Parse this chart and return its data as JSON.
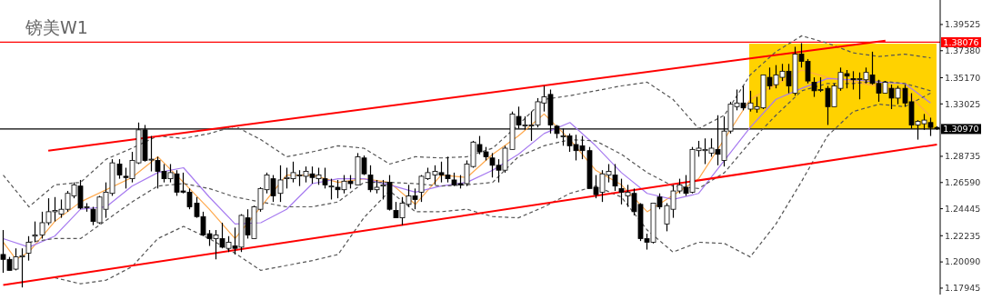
{
  "chart_data": {
    "type": "candlestick",
    "title": "镑美W1",
    "color": "#000000",
    "tick_labels": "y",
    "marker": "none",
    "ylim": [
      1.1742,
      1.4153
    ],
    "yticks": [
      1.39525,
      {
        "value": 1.3738,
        "label": "1.37380"
      },
      {
        "value": 1.3517,
        "label": "1.35170"
      },
      1.33025,
      1.28735,
      {
        "value": 1.2659,
        "label": "1.26590"
      },
      1.24445,
      1.22235,
      {
        "value": 1.2009,
        "label": "1.20090"
      },
      1.17945
    ],
    "categories": [
      null,
      null,
      null,
      null,
      null,
      null,
      null,
      null,
      null,
      null,
      null,
      null,
      null,
      null,
      null,
      null,
      null,
      null,
      null,
      null,
      null,
      null,
      null,
      null,
      null,
      null,
      null,
      null,
      null,
      null,
      null,
      null,
      null,
      null,
      null,
      null,
      null,
      null,
      null,
      null,
      null,
      null,
      null,
      null,
      null,
      null,
      null,
      null,
      null,
      null,
      null,
      null,
      null,
      null,
      null,
      null,
      null,
      null,
      null,
      null,
      null,
      null,
      null,
      null,
      null,
      null,
      null,
      null,
      null,
      null,
      null,
      null,
      null,
      null,
      null,
      null,
      null,
      null,
      null,
      null,
      null,
      null,
      null,
      null,
      null,
      null,
      null,
      null,
      null,
      null,
      null,
      null,
      null,
      null,
      null,
      null,
      null,
      null,
      null,
      null,
      null,
      null,
      null,
      null,
      null,
      null,
      null,
      null,
      null,
      null,
      null,
      null,
      null,
      null,
      null,
      null,
      null,
      null,
      null,
      null,
      null,
      null,
      null,
      null,
      null,
      null,
      null,
      null,
      null,
      null,
      null,
      null,
      null,
      null,
      null,
      null,
      null,
      null,
      null,
      null,
      null,
      null,
      null,
      null,
      null,
      null
    ],
    "ohlc": [
      [
        1.207,
        1.227,
        1.192,
        1.203
      ],
      [
        1.203,
        1.205,
        1.194,
        1.194
      ],
      [
        1.195,
        1.212,
        1.194,
        1.205
      ],
      [
        1.205,
        1.212,
        1.18,
        1.206
      ],
      [
        1.208,
        1.222,
        1.202,
        1.217
      ],
      [
        1.222,
        1.234,
        1.217,
        1.223
      ],
      [
        1.223,
        1.242,
        1.22,
        1.233
      ],
      [
        1.233,
        1.253,
        1.231,
        1.242
      ],
      [
        1.242,
        1.254,
        1.234,
        1.243
      ],
      [
        1.24,
        1.252,
        1.237,
        1.244
      ],
      [
        1.244,
        1.259,
        1.242,
        1.257
      ],
      [
        1.255,
        1.266,
        1.253,
        1.264
      ],
      [
        1.263,
        1.268,
        1.244,
        1.245
      ],
      [
        1.246,
        1.249,
        1.242,
        1.246
      ],
      [
        1.244,
        1.246,
        1.231,
        1.234
      ],
      [
        1.233,
        1.255,
        1.232,
        1.254
      ],
      [
        1.244,
        1.266,
        1.237,
        1.258
      ],
      [
        1.257,
        1.285,
        1.255,
        1.282
      ],
      [
        1.281,
        1.285,
        1.269,
        1.272
      ],
      [
        1.271,
        1.278,
        1.261,
        1.27
      ],
      [
        1.269,
        1.291,
        1.266,
        1.284
      ],
      [
        1.282,
        1.315,
        1.281,
        1.309
      ],
      [
        1.309,
        1.313,
        1.283,
        1.284
      ],
      [
        1.285,
        1.304,
        1.275,
        1.285
      ],
      [
        1.284,
        1.287,
        1.261,
        1.275
      ],
      [
        1.275,
        1.281,
        1.266,
        1.269
      ],
      [
        1.269,
        1.281,
        1.266,
        1.274
      ],
      [
        1.273,
        1.276,
        1.255,
        1.258
      ],
      [
        1.259,
        1.274,
        1.257,
        1.258
      ],
      [
        1.258,
        1.261,
        1.244,
        1.246
      ],
      [
        1.249,
        1.254,
        1.237,
        1.238
      ],
      [
        1.238,
        1.242,
        1.222,
        1.223
      ],
      [
        1.224,
        1.227,
        1.214,
        1.22
      ],
      [
        1.22,
        1.227,
        1.203,
        1.223
      ],
      [
        1.22,
        1.233,
        1.212,
        1.213
      ],
      [
        1.212,
        1.222,
        1.209,
        1.217
      ],
      [
        1.214,
        1.229,
        1.207,
        1.212
      ],
      [
        1.213,
        1.24,
        1.209,
        1.239
      ],
      [
        1.237,
        1.244,
        1.22,
        1.223
      ],
      [
        1.22,
        1.247,
        1.22,
        1.246
      ],
      [
        1.244,
        1.262,
        1.242,
        1.261
      ],
      [
        1.26,
        1.274,
        1.257,
        1.272
      ],
      [
        1.269,
        1.272,
        1.25,
        1.255
      ],
      [
        1.257,
        1.28,
        1.25,
        1.268
      ],
      [
        1.269,
        1.278,
        1.261,
        1.27
      ],
      [
        1.269,
        1.283,
        1.266,
        1.274
      ],
      [
        1.272,
        1.276,
        1.263,
        1.272
      ],
      [
        1.271,
        1.279,
        1.266,
        1.275
      ],
      [
        1.273,
        1.279,
        1.265,
        1.27
      ],
      [
        1.269,
        1.278,
        1.264,
        1.272
      ],
      [
        1.269,
        1.278,
        1.261,
        1.264
      ],
      [
        1.263,
        1.269,
        1.252,
        1.263
      ],
      [
        1.262,
        1.268,
        1.253,
        1.26
      ],
      [
        1.26,
        1.272,
        1.257,
        1.267
      ],
      [
        1.267,
        1.272,
        1.261,
        1.265
      ],
      [
        1.264,
        1.29,
        1.264,
        1.287
      ],
      [
        1.286,
        1.288,
        1.272,
        1.273
      ],
      [
        1.272,
        1.28,
        1.258,
        1.26
      ],
      [
        1.26,
        1.268,
        1.257,
        1.262
      ],
      [
        1.263,
        1.268,
        1.252,
        1.264
      ],
      [
        1.266,
        1.272,
        1.243,
        1.244
      ],
      [
        1.243,
        1.25,
        1.237,
        1.237
      ],
      [
        1.237,
        1.254,
        1.231,
        1.249
      ],
      [
        1.248,
        1.264,
        1.246,
        1.255
      ],
      [
        1.255,
        1.261,
        1.244,
        1.252
      ],
      [
        1.258,
        1.272,
        1.25,
        1.271
      ],
      [
        1.269,
        1.278,
        1.268,
        1.274
      ],
      [
        1.272,
        1.28,
        1.264,
        1.275
      ],
      [
        1.274,
        1.283,
        1.266,
        1.272
      ],
      [
        1.272,
        1.287,
        1.266,
        1.269
      ],
      [
        1.268,
        1.274,
        1.263,
        1.264
      ],
      [
        1.265,
        1.272,
        1.261,
        1.264
      ],
      [
        1.265,
        1.284,
        1.263,
        1.281
      ],
      [
        1.279,
        1.3,
        1.278,
        1.299
      ],
      [
        1.297,
        1.304,
        1.289,
        1.291
      ],
      [
        1.291,
        1.295,
        1.284,
        1.287
      ],
      [
        1.286,
        1.29,
        1.27,
        1.28
      ],
      [
        1.28,
        1.285,
        1.266,
        1.276
      ],
      [
        1.276,
        1.296,
        1.274,
        1.294
      ],
      [
        1.293,
        1.324,
        1.293,
        1.322
      ],
      [
        1.32,
        1.328,
        1.31,
        1.313
      ],
      [
        1.313,
        1.32,
        1.309,
        1.313
      ],
      [
        1.313,
        1.324,
        1.3,
        1.313
      ],
      [
        1.313,
        1.335,
        1.311,
        1.332
      ],
      [
        1.331,
        1.345,
        1.324,
        1.336
      ],
      [
        1.338,
        1.342,
        1.306,
        1.313
      ],
      [
        1.312,
        1.313,
        1.302,
        1.306
      ],
      [
        1.304,
        1.31,
        1.296,
        1.304
      ],
      [
        1.304,
        1.306,
        1.291,
        1.296
      ],
      [
        1.297,
        1.305,
        1.284,
        1.292
      ],
      [
        1.296,
        1.304,
        1.285,
        1.292
      ],
      [
        1.292,
        1.295,
        1.261,
        1.261
      ],
      [
        1.262,
        1.272,
        1.253,
        1.256
      ],
      [
        1.258,
        1.276,
        1.25,
        1.273
      ],
      [
        1.272,
        1.281,
        1.266,
        1.275
      ],
      [
        1.272,
        1.281,
        1.259,
        1.263
      ],
      [
        1.261,
        1.269,
        1.248,
        1.258
      ],
      [
        1.255,
        1.264,
        1.246,
        1.258
      ],
      [
        1.257,
        1.261,
        1.239,
        1.242
      ],
      [
        1.248,
        1.249,
        1.218,
        1.22
      ],
      [
        1.22,
        1.224,
        1.211,
        1.217
      ],
      [
        1.217,
        1.249,
        1.216,
        1.249
      ],
      [
        1.254,
        1.257,
        1.244,
        1.246
      ],
      [
        1.232,
        1.249,
        1.226,
        1.247
      ],
      [
        1.244,
        1.264,
        1.237,
        1.259
      ],
      [
        1.259,
        1.269,
        1.257,
        1.264
      ],
      [
        1.262,
        1.272,
        1.255,
        1.257
      ],
      [
        1.258,
        1.295,
        1.257,
        1.293
      ],
      [
        1.292,
        1.3,
        1.287,
        1.294
      ],
      [
        1.292,
        1.302,
        1.281,
        1.293
      ],
      [
        1.29,
        1.302,
        1.287,
        1.294
      ],
      [
        1.293,
        1.321,
        1.28,
        1.289
      ],
      [
        1.284,
        1.32,
        1.279,
        1.308
      ],
      [
        1.308,
        1.332,
        1.306,
        1.33
      ],
      [
        1.328,
        1.342,
        1.325,
        1.331
      ],
      [
        1.331,
        1.345,
        1.325,
        1.327
      ],
      [
        1.326,
        1.341,
        1.324,
        1.331
      ],
      [
        1.326,
        1.336,
        1.323,
        1.328
      ],
      [
        1.327,
        1.354,
        1.326,
        1.354
      ],
      [
        1.352,
        1.36,
        1.342,
        1.345
      ],
      [
        1.346,
        1.362,
        1.343,
        1.354
      ],
      [
        1.352,
        1.363,
        1.349,
        1.357
      ],
      [
        1.357,
        1.363,
        1.339,
        1.345
      ],
      [
        1.339,
        1.377,
        1.337,
        1.371
      ],
      [
        1.371,
        1.38,
        1.36,
        1.365
      ],
      [
        1.365,
        1.367,
        1.347,
        1.349
      ],
      [
        1.348,
        1.352,
        1.336,
        1.341
      ],
      [
        1.342,
        1.352,
        1.34,
        1.342
      ],
      [
        1.343,
        1.345,
        1.313,
        1.328
      ],
      [
        1.328,
        1.347,
        1.328,
        1.345
      ],
      [
        1.343,
        1.36,
        1.341,
        1.356
      ],
      [
        1.355,
        1.358,
        1.343,
        1.353
      ],
      [
        1.351,
        1.357,
        1.342,
        1.35
      ],
      [
        1.351,
        1.356,
        1.334,
        1.351
      ],
      [
        1.35,
        1.36,
        1.347,
        1.356
      ],
      [
        1.354,
        1.373,
        1.346,
        1.347
      ],
      [
        1.347,
        1.35,
        1.332,
        1.339
      ],
      [
        1.339,
        1.349,
        1.339,
        1.348
      ],
      [
        1.343,
        1.346,
        1.326,
        1.335
      ],
      [
        1.335,
        1.345,
        1.33,
        1.343
      ],
      [
        1.343,
        1.346,
        1.328,
        1.331
      ],
      [
        1.332,
        1.339,
        1.31,
        1.313
      ],
      [
        1.313,
        1.317,
        1.301,
        1.316
      ],
      [
        1.314,
        1.322,
        1.309,
        1.317
      ],
      [
        1.315,
        1.319,
        1.304,
        1.311
      ],
      [
        1.311,
        1.312,
        1.309,
        1.31
      ]
    ],
    "series": [
      {
        "type": "line",
        "color": "#ffa94d",
        "values": [
          1.217,
          null,
          1.203,
          null,
          1.209,
          null,
          null,
          null,
          1.234,
          null,
          null,
          null,
          1.25,
          null,
          null,
          null,
          null,
          null,
          null,
          null,
          1.27,
          null,
          null,
          null,
          1.287,
          null,
          null,
          null,
          1.266,
          null,
          null,
          null,
          1.244,
          null,
          null,
          null,
          1.22,
          null,
          null,
          null,
          1.246,
          null,
          null,
          null,
          1.272,
          null,
          null,
          null,
          1.272,
          null,
          null,
          null,
          1.266,
          null,
          null,
          null,
          1.269,
          null,
          null,
          null,
          1.266,
          null,
          null,
          null,
          1.248,
          null,
          null,
          null,
          1.272,
          null,
          null,
          null,
          1.27,
          null,
          null,
          null,
          1.289,
          null,
          null,
          null,
          1.304,
          null,
          null,
          null,
          1.322,
          null,
          null,
          null,
          1.301,
          null,
          null,
          null,
          1.276,
          null,
          null,
          null,
          1.264,
          null,
          null,
          null,
          1.242,
          null,
          null,
          null,
          null,
          null,
          null,
          null,
          1.269,
          null,
          null,
          null,
          null,
          null,
          null,
          null,
          1.334,
          null,
          null,
          null,
          null,
          null,
          null,
          null,
          1.358,
          null,
          null,
          null,
          1.352,
          null,
          null,
          null,
          null,
          null,
          null,
          null,
          null,
          null,
          null,
          null,
          1.341,
          null,
          null,
          null,
          1.32,
          null
        ]
      },
      {
        "type": "line",
        "color": "#a77bf0",
        "values": [
          1.22,
          null,
          null,
          null,
          1.213,
          null,
          null,
          null,
          1.222,
          null,
          null,
          null,
          1.244,
          null,
          null,
          null,
          1.246,
          null,
          null,
          null,
          1.263,
          null,
          null,
          null,
          1.274,
          null,
          null,
          null,
          1.278,
          null,
          null,
          null,
          1.254,
          null,
          null,
          null,
          1.232,
          null,
          null,
          null,
          1.233,
          null,
          null,
          null,
          1.244,
          null,
          null,
          null,
          1.265,
          null,
          null,
          null,
          1.269,
          null,
          null,
          null,
          1.269,
          null,
          null,
          null,
          1.264,
          null,
          null,
          null,
          1.258,
          null,
          null,
          null,
          1.263,
          null,
          null,
          null,
          1.266,
          null,
          null,
          null,
          1.276,
          null,
          null,
          null,
          1.289,
          null,
          null,
          null,
          1.306,
          null,
          null,
          null,
          1.315,
          null,
          null,
          null,
          1.296,
          null,
          null,
          null,
          1.274,
          null,
          null,
          null,
          1.257,
          null,
          null,
          null,
          1.252,
          null,
          null,
          null,
          1.257,
          null,
          null,
          null,
          1.284,
          null,
          null,
          null,
          1.311,
          null,
          null,
          null,
          1.334,
          null,
          null,
          null,
          1.343,
          null,
          null,
          null,
          1.351,
          null,
          null,
          null,
          1.35,
          null,
          null,
          null,
          1.348,
          null,
          null,
          null,
          1.347,
          null,
          null,
          null,
          1.331,
          null
        ]
      },
      {
        "type": "line",
        "color": "#555555",
        "line_style": "dashed",
        "values": [
          1.272,
          null,
          null,
          null,
          1.246,
          null,
          null,
          null,
          1.264,
          null,
          null,
          null,
          1.266,
          null,
          null,
          null,
          1.285,
          null,
          null,
          null,
          1.294,
          null,
          null,
          null,
          1.304,
          null,
          null,
          null,
          1.302,
          null,
          null,
          null,
          1.306,
          null,
          null,
          null,
          1.312,
          null,
          null,
          null,
          1.301,
          null,
          null,
          null,
          1.287,
          null,
          null,
          null,
          1.291,
          null,
          null,
          null,
          1.296,
          null,
          null,
          null,
          1.294,
          null,
          null,
          null,
          1.281,
          null,
          null,
          null,
          1.287,
          null,
          null,
          null,
          1.286,
          null,
          null,
          null,
          1.287,
          null,
          null,
          null,
          1.294,
          null,
          null,
          null,
          1.313,
          null,
          null,
          null,
          1.334,
          null,
          null,
          null,
          1.337,
          null,
          null,
          null,
          1.341,
          null,
          null,
          null,
          1.345,
          null,
          null,
          null,
          1.348,
          null,
          null,
          null,
          1.334,
          null,
          null,
          null,
          1.31,
          null,
          null,
          null,
          1.321,
          null,
          null,
          null,
          1.354,
          null,
          null,
          null,
          1.373,
          null,
          null,
          null,
          1.386,
          null,
          null,
          null,
          1.38,
          null,
          null,
          null,
          1.372,
          null,
          null,
          null,
          1.369,
          null,
          null,
          null,
          1.371,
          null,
          null,
          null,
          1.368,
          null
        ]
      },
      {
        "type": "line",
        "color": "#555555",
        "line_style": "dashed",
        "values": [
          null,
          null,
          null,
          null,
          1.217,
          null,
          null,
          null,
          1.22,
          null,
          null,
          null,
          1.22,
          null,
          null,
          null,
          1.235,
          null,
          null,
          null,
          1.25,
          null,
          null,
          null,
          1.263,
          null,
          null,
          null,
          1.265,
          null,
          null,
          null,
          1.261,
          null,
          null,
          null,
          1.254,
          null,
          null,
          null,
          1.25,
          null,
          null,
          null,
          1.246,
          null,
          null,
          null,
          1.246,
          null,
          null,
          null,
          1.25,
          null,
          null,
          null,
          1.266,
          null,
          null,
          null,
          1.266,
          null,
          null,
          null,
          1.265,
          null,
          null,
          null,
          1.263,
          null,
          null,
          null,
          1.264,
          null,
          null,
          null,
          1.266,
          null,
          null,
          null,
          1.287,
          null,
          null,
          null,
          1.296,
          null,
          null,
          null,
          1.301,
          null,
          null,
          null,
          1.3,
          null,
          null,
          null,
          1.289,
          null,
          null,
          null,
          1.274,
          null,
          null,
          null,
          1.263,
          null,
          null,
          null,
          1.261,
          null,
          null,
          null,
          1.274,
          null,
          null,
          null,
          1.299,
          null,
          null,
          null,
          1.321,
          null,
          null,
          null,
          1.341,
          null,
          null,
          null,
          1.347,
          null,
          null,
          null,
          1.347,
          null,
          null,
          null,
          1.349,
          null,
          null,
          null,
          1.347,
          null,
          null,
          null,
          1.341,
          null
        ]
      },
      {
        "type": "line",
        "color": "#555555",
        "line_style": "dashed",
        "values": [
          null,
          null,
          null,
          null,
          null,
          null,
          null,
          null,
          1.188,
          null,
          null,
          null,
          1.183,
          null,
          null,
          null,
          1.186,
          null,
          null,
          null,
          1.197,
          null,
          null,
          null,
          1.22,
          null,
          null,
          null,
          1.23,
          null,
          null,
          null,
          1.22,
          null,
          null,
          null,
          1.208,
          null,
          null,
          null,
          1.194,
          null,
          null,
          null,
          1.198,
          null,
          null,
          null,
          1.202,
          null,
          null,
          null,
          1.207,
          null,
          null,
          null,
          1.237,
          null,
          null,
          null,
          1.259,
          null,
          null,
          null,
          1.242,
          null,
          null,
          null,
          1.242,
          null,
          null,
          null,
          1.244,
          null,
          null,
          null,
          1.238,
          null,
          null,
          null,
          1.237,
          null,
          null,
          null,
          1.246,
          null,
          null,
          null,
          1.257,
          null,
          null,
          null,
          1.263,
          null,
          null,
          null,
          1.254,
          null,
          null,
          null,
          1.227,
          null,
          null,
          null,
          1.209,
          null,
          null,
          null,
          1.217,
          null,
          null,
          null,
          1.216,
          null,
          null,
          null,
          1.205,
          null,
          null,
          null,
          1.232,
          null,
          null,
          null,
          1.267,
          null,
          null,
          null,
          1.304,
          null,
          null,
          null,
          1.324,
          null,
          null,
          null,
          1.33,
          null,
          null,
          null,
          1.328,
          null,
          null,
          null,
          1.339,
          null
        ]
      },
      {
        "type": "line",
        "color": "#ff0000",
        "values": [
          null,
          null,
          null,
          null,
          null,
          null,
          null,
          1.292,
          null,
          null,
          null,
          null,
          null,
          null,
          null,
          null,
          null,
          null,
          null,
          null,
          null,
          null,
          null,
          null,
          null,
          null,
          null,
          null,
          null,
          null,
          null,
          null,
          null,
          null,
          null,
          null,
          null,
          null,
          null,
          null,
          null,
          null,
          null,
          null,
          null,
          null,
          null,
          null,
          null,
          null,
          null,
          null,
          null,
          null,
          null,
          null,
          null,
          null,
          null,
          null,
          null,
          null,
          null,
          null,
          null,
          null,
          null,
          null,
          null,
          null,
          null,
          null,
          null,
          null,
          null,
          null,
          null,
          null,
          null,
          null,
          null,
          null,
          null,
          null,
          null,
          null,
          null,
          null,
          null,
          null,
          null,
          null,
          null,
          null,
          null,
          null,
          null,
          null,
          null,
          null,
          null,
          null,
          null,
          null,
          null,
          null,
          null,
          null,
          null,
          null,
          null,
          null,
          null,
          null,
          null,
          null,
          null,
          null,
          null,
          null,
          null,
          null,
          null,
          null,
          null,
          null,
          null,
          null,
          null,
          null,
          null,
          null,
          null,
          null,
          null,
          null,
          null,
          1.382,
          null,
          null,
          null,
          null,
          null,
          null,
          null,
          null
        ]
      },
      {
        "type": "line",
        "color": "#ff0000",
        "values": [
          1.182,
          null,
          null,
          null,
          null,
          null,
          null,
          null,
          null,
          null,
          null,
          null,
          null,
          null,
          null,
          null,
          null,
          null,
          null,
          null,
          null,
          null,
          null,
          null,
          null,
          null,
          null,
          null,
          null,
          null,
          null,
          null,
          null,
          null,
          null,
          null,
          null,
          null,
          null,
          null,
          null,
          null,
          null,
          null,
          null,
          null,
          null,
          null,
          null,
          null,
          null,
          null,
          null,
          null,
          null,
          null,
          null,
          null,
          null,
          null,
          null,
          null,
          null,
          null,
          null,
          null,
          null,
          null,
          null,
          null,
          null,
          null,
          null,
          null,
          null,
          null,
          null,
          null,
          null,
          null,
          null,
          null,
          null,
          null,
          null,
          null,
          null,
          null,
          null,
          null,
          null,
          null,
          null,
          null,
          null,
          null,
          null,
          null,
          null,
          null,
          null,
          null,
          null,
          null,
          null,
          null,
          null,
          null,
          null,
          null,
          null,
          null,
          null,
          null,
          null,
          null,
          null,
          null,
          null,
          null,
          null,
          null,
          null,
          null,
          null,
          null,
          null,
          null,
          null,
          null,
          null,
          null,
          null,
          null,
          null,
          null,
          null,
          null,
          null,
          null,
          null,
          null,
          null,
          null,
          null,
          1.297
        ]
      }
    ],
    "ref_lines": [
      {
        "axis": "y",
        "value": 1.38076,
        "label": "1.38076",
        "color": "#ff0000",
        "line_style": "solid"
      },
      {
        "axis": "y",
        "value": 1.3097,
        "label": "1.30970",
        "color": "#000000",
        "line_style": "solid"
      }
    ]
  }
}
